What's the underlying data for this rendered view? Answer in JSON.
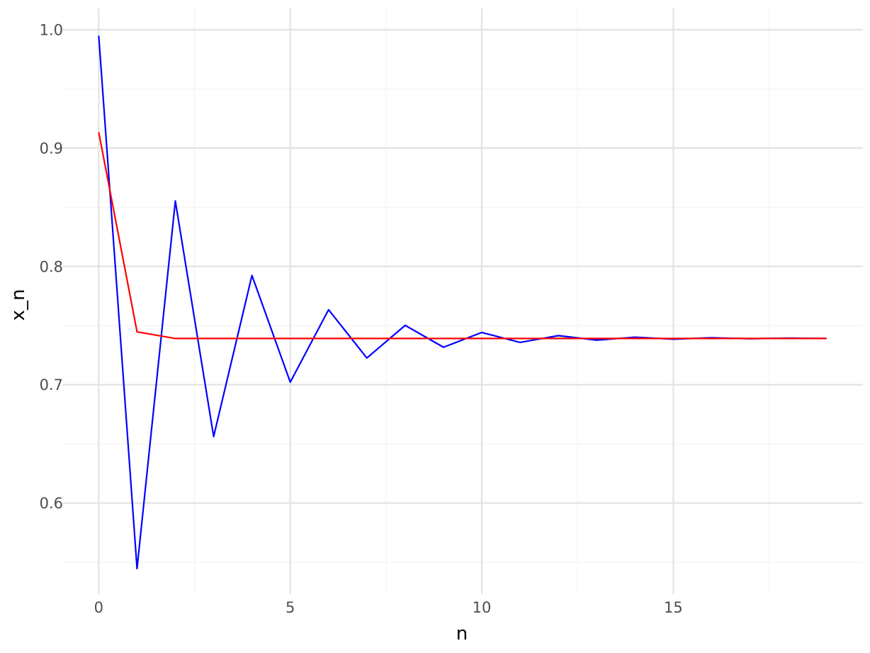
{
  "chart_data": {
    "type": "line",
    "title": "",
    "xlabel": "n",
    "ylabel": "x_n",
    "xlim": [
      -0.95,
      19.95
    ],
    "ylim": [
      0.523,
      1.018
    ],
    "x_ticks": [
      0,
      5,
      10,
      15
    ],
    "x_tick_labels": [
      "0",
      "5",
      "10",
      "15"
    ],
    "y_ticks": [
      0.6,
      0.7,
      0.8,
      0.9,
      1.0
    ],
    "y_tick_labels": [
      "0.6",
      "0.7",
      "0.8",
      "0.9",
      "1.0"
    ],
    "x_minor_ticks": [
      2.5,
      7.5,
      12.5,
      17.5
    ],
    "y_minor_ticks": [
      0.55,
      0.65,
      0.75,
      0.85,
      0.95
    ],
    "grid": true,
    "legend": "none",
    "x": [
      0,
      1,
      2,
      3,
      4,
      5,
      6,
      7,
      8,
      9,
      10,
      11,
      12,
      13,
      14,
      15,
      16,
      17,
      18,
      19
    ],
    "series": [
      {
        "color": "#0000ff",
        "values": [
          0.995,
          0.5446,
          0.8553,
          0.6562,
          0.7924,
          0.7022,
          0.7634,
          0.7226,
          0.7502,
          0.7317,
          0.7442,
          0.7358,
          0.7415,
          0.7377,
          0.7402,
          0.7385,
          0.7397,
          0.7389,
          0.7394,
          0.7391
        ]
      },
      {
        "color": "#ff0000",
        "values": [
          0.9134,
          0.7447,
          0.7391,
          0.7391,
          0.7391,
          0.7391,
          0.7391,
          0.7391,
          0.7391,
          0.7391,
          0.7391,
          0.7391,
          0.7391,
          0.7391,
          0.7391,
          0.7391,
          0.7391,
          0.7391,
          0.7391,
          0.7391
        ]
      }
    ]
  }
}
